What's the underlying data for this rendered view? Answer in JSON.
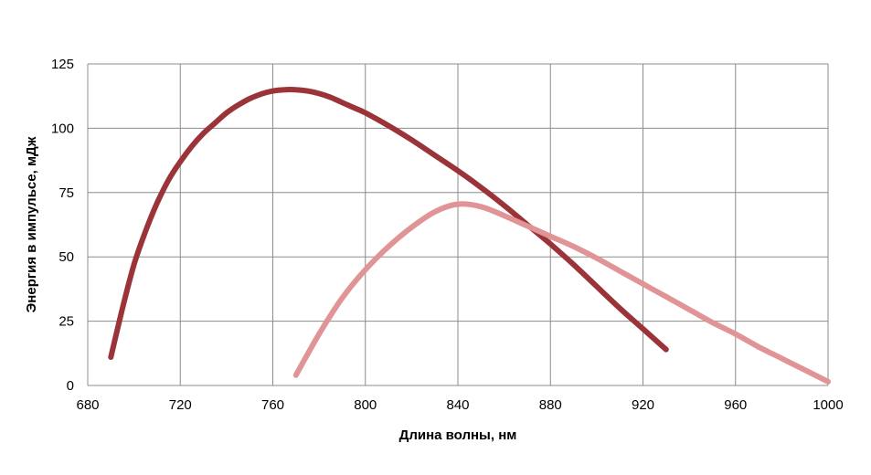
{
  "chart_data": {
    "type": "line",
    "title": "",
    "xlabel": "Длина волны, нм",
    "ylabel": "Энергия в импульсе, мДж",
    "xlim": [
      680,
      1000
    ],
    "ylim": [
      0,
      125
    ],
    "x_ticks": [
      680,
      720,
      760,
      800,
      840,
      880,
      920,
      960,
      1000
    ],
    "y_ticks": [
      0,
      25,
      50,
      75,
      100,
      125
    ],
    "grid": true,
    "legend": "none",
    "series": [
      {
        "color": "#9b3438",
        "x": [
          690,
          695,
          700,
          705,
          710,
          715,
          720,
          725,
          730,
          735,
          740,
          745,
          750,
          755,
          760,
          765,
          770,
          775,
          780,
          785,
          790,
          795,
          800,
          810,
          820,
          830,
          840,
          850,
          860,
          870,
          880,
          890,
          900,
          910,
          920,
          930
        ],
        "y": [
          11,
          30,
          47,
          60,
          71,
          80,
          87,
          93,
          98,
          102,
          106,
          109,
          111.5,
          113.3,
          114.5,
          115,
          115,
          114.5,
          113.5,
          112,
          110,
          108,
          106,
          101,
          95.5,
          89.5,
          83.5,
          77,
          70,
          62.5,
          55,
          47,
          38.5,
          30,
          22,
          14
        ]
      },
      {
        "color": "#e09495",
        "x": [
          770,
          780,
          790,
          800,
          810,
          820,
          830,
          840,
          850,
          860,
          870,
          880,
          890,
          900,
          910,
          920,
          930,
          940,
          950,
          960,
          970,
          980,
          990,
          1000
        ],
        "y": [
          4,
          20,
          34,
          45,
          54,
          61.5,
          67.5,
          70.5,
          69.5,
          66,
          62,
          58,
          54,
          49.5,
          44.5,
          39.5,
          34.5,
          29.5,
          24.5,
          20,
          15,
          10.5,
          6,
          1.5
        ]
      }
    ]
  }
}
